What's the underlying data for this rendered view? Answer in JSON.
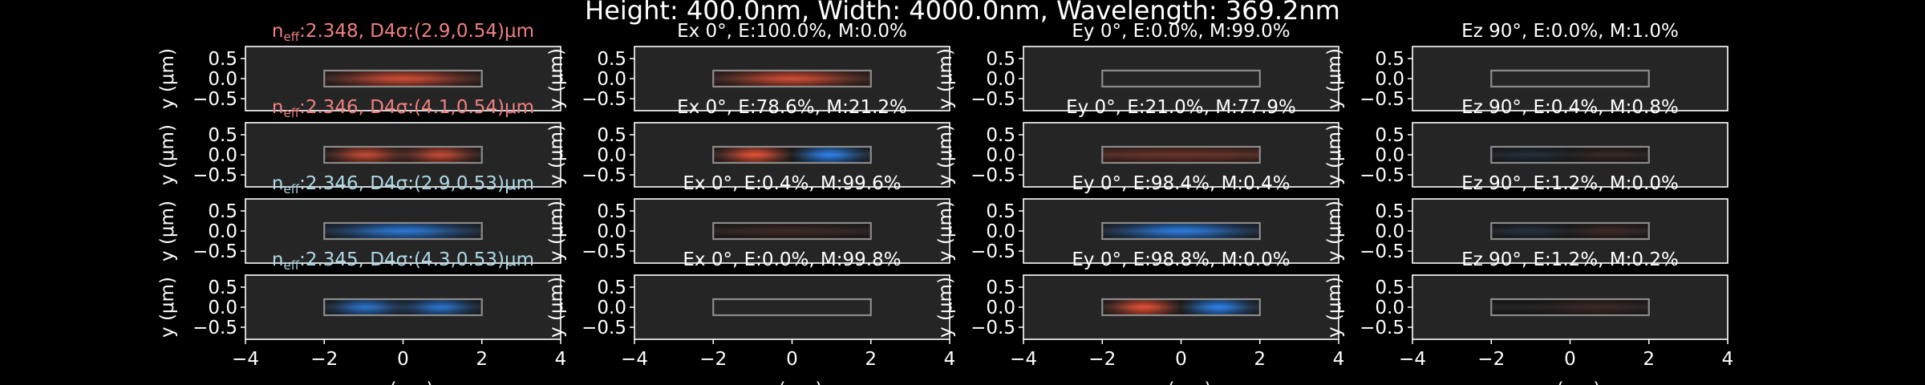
{
  "figure": {
    "suptitle": "Height: 400.0nm, Width: 4000.0nm, Wavelength: 369.2nm",
    "background": "#000000",
    "axes_face": "#252525",
    "text_color": "#ffffff",
    "mode_color_even": "#f08080",
    "mode_color_odd": "#add8e6",
    "positive_field_color": "#e8553a",
    "negative_field_color": "#2f86f0",
    "core_outline_color": "#8c8c8c"
  },
  "chart_data": {
    "type": "heatmap",
    "xlim": [
      -4,
      4
    ],
    "ylim": [
      -0.8,
      0.8
    ],
    "xticks": [
      "−4",
      "−2",
      "0",
      "2",
      "4"
    ],
    "yticks": [
      "0.5",
      "0.0",
      "−0.5"
    ],
    "ylabel": "y (μm)",
    "xlabel": "x (μm)",
    "core_rect": {
      "x": [
        -2,
        2
      ],
      "y": [
        -0.2,
        0.2
      ]
    },
    "modes": [
      {
        "label_prefix": "n",
        "label_sub": "eff",
        "label_rest": ":2.348, D4σ:(2.9,0.54)μm",
        "label_color": "#f08080",
        "intensity_pattern": {
          "lobes": [
            0
          ],
          "sign": [
            1
          ],
          "sigma": 1.0,
          "strength": 0.85
        },
        "panels": [
          {
            "title": "Ex 0°, E:100.0%, M:0.0%",
            "field": {
              "lobes": [
                0
              ],
              "sign": [
                1
              ],
              "sigma": 1.0,
              "strength": 0.85
            }
          },
          {
            "title": "Ey 0°, E:0.0%, M:99.0%",
            "field": {
              "lobes": [
                0
              ],
              "sign": [
                1
              ],
              "sigma": 1.0,
              "strength": 0.0
            }
          },
          {
            "title": "Ez 90°, E:0.0%, M:1.0%",
            "field": {
              "lobes": [
                0
              ],
              "sign": [
                1
              ],
              "sigma": 1.0,
              "strength": 0.0
            }
          }
        ]
      },
      {
        "label_prefix": "n",
        "label_sub": "eff",
        "label_rest": ":2.346, D4σ:(4.1,0.54)μm",
        "label_color": "#f08080",
        "intensity_pattern": {
          "lobes": [
            -0.95,
            0.95
          ],
          "sign": [
            1,
            1
          ],
          "sigma": 0.48,
          "strength": 0.8
        },
        "panels": [
          {
            "title": "Ex 0°, E:78.6%, M:21.2%",
            "field": {
              "lobes": [
                -0.95,
                0.95
              ],
              "sign": [
                1,
                -1
              ],
              "sigma": 0.48,
              "strength": 0.95
            }
          },
          {
            "title": "Ey 0°, E:21.0%, M:77.9%",
            "field": {
              "lobes": [
                0
              ],
              "sign": [
                1
              ],
              "sigma": 2.2,
              "strength": 0.35
            }
          },
          {
            "title": "Ez 90°, E:0.4%, M:0.8%",
            "field": {
              "lobes": [
                -1,
                1
              ],
              "sign": [
                -1,
                1
              ],
              "sigma": 0.6,
              "strength": 0.1
            }
          }
        ]
      },
      {
        "label_prefix": "n",
        "label_sub": "eff",
        "label_rest": ":2.346, D4σ:(2.9,0.53)μm",
        "label_color": "#add8e6",
        "intensity_pattern": {
          "lobes": [
            0
          ],
          "sign": [
            -1
          ],
          "sigma": 1.0,
          "strength": 0.85
        },
        "panels": [
          {
            "title": "Ex 0°, E:0.4%, M:99.6%",
            "field": {
              "lobes": [
                0
              ],
              "sign": [
                1
              ],
              "sigma": 1.4,
              "strength": 0.12
            }
          },
          {
            "title": "Ey 0°, E:98.4%, M:0.4%",
            "field": {
              "lobes": [
                0
              ],
              "sign": [
                -1
              ],
              "sigma": 1.0,
              "strength": 0.9
            }
          },
          {
            "title": "Ez 90°, E:1.2%, M:0.0%",
            "field": {
              "lobes": [
                -1,
                1
              ],
              "sign": [
                -1,
                1
              ],
              "sigma": 0.6,
              "strength": 0.12
            }
          }
        ]
      },
      {
        "label_prefix": "n",
        "label_sub": "eff",
        "label_rest": ":2.345, D4σ:(4.3,0.53)μm",
        "label_color": "#add8e6",
        "intensity_pattern": {
          "lobes": [
            -0.95,
            0.95
          ],
          "sign": [
            -1,
            -1
          ],
          "sigma": 0.48,
          "strength": 0.8
        },
        "panels": [
          {
            "title": "Ex 0°, E:0.0%, M:99.8%",
            "field": {
              "lobes": [
                0
              ],
              "sign": [
                1
              ],
              "sigma": 1.0,
              "strength": 0.0
            }
          },
          {
            "title": "Ey 0°, E:98.8%, M:0.0%",
            "field": {
              "lobes": [
                -0.95,
                0.95
              ],
              "sign": [
                1,
                -1
              ],
              "sigma": 0.48,
              "strength": 0.95
            }
          },
          {
            "title": "Ez 90°, E:1.2%, M:0.2%",
            "field": {
              "lobes": [
                0.7
              ],
              "sign": [
                1
              ],
              "sigma": 0.7,
              "strength": 0.12
            }
          }
        ]
      }
    ]
  }
}
